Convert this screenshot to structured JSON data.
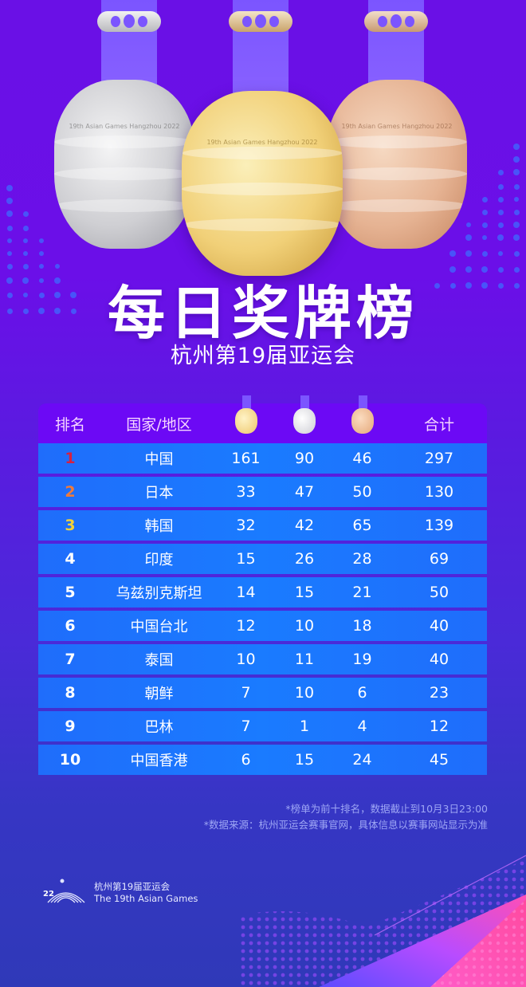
{
  "header": {
    "title": "每日奖牌榜",
    "subtitle": "杭州第19届亚运会"
  },
  "medals_image": {
    "items": [
      {
        "type": "silver",
        "icon": "silver-medal-icon",
        "inscription": "19th Asian Games Hangzhou 2022"
      },
      {
        "type": "gold",
        "icon": "gold-medal-icon",
        "inscription": "19th Asian Games Hangzhou 2022"
      },
      {
        "type": "bronze",
        "icon": "bronze-medal-icon",
        "inscription": "19th Asian Games Hangzhou 2022"
      }
    ]
  },
  "table": {
    "columns": {
      "rank": "排名",
      "country": "国家/地区",
      "gold_icon": "gold-medal-icon",
      "silver_icon": "silver-medal-icon",
      "bronze_icon": "bronze-medal-icon",
      "total": "合计"
    },
    "rank_colors": {
      "1": "#d8203f",
      "2": "#f07a3a",
      "3": "#f2d23a",
      "default": "#ffffff"
    },
    "rows": [
      {
        "rank": "1",
        "country": "中国",
        "gold": "161",
        "silver": "90",
        "bronze": "46",
        "total": "297"
      },
      {
        "rank": "2",
        "country": "日本",
        "gold": "33",
        "silver": "47",
        "bronze": "50",
        "total": "130"
      },
      {
        "rank": "3",
        "country": "韩国",
        "gold": "32",
        "silver": "42",
        "bronze": "65",
        "total": "139"
      },
      {
        "rank": "4",
        "country": "印度",
        "gold": "15",
        "silver": "26",
        "bronze": "28",
        "total": "69"
      },
      {
        "rank": "5",
        "country": "乌兹别克斯坦",
        "gold": "14",
        "silver": "15",
        "bronze": "21",
        "total": "50"
      },
      {
        "rank": "6",
        "country": "中国台北",
        "gold": "12",
        "silver": "10",
        "bronze": "18",
        "total": "40"
      },
      {
        "rank": "7",
        "country": "泰国",
        "gold": "10",
        "silver": "11",
        "bronze": "19",
        "total": "40"
      },
      {
        "rank": "8",
        "country": "朝鲜",
        "gold": "7",
        "silver": "10",
        "bronze": "6",
        "total": "23"
      },
      {
        "rank": "9",
        "country": "巴林",
        "gold": "7",
        "silver": "1",
        "bronze": "4",
        "total": "12"
      },
      {
        "rank": "10",
        "country": "中国香港",
        "gold": "6",
        "silver": "15",
        "bronze": "24",
        "total": "45"
      }
    ]
  },
  "notes": {
    "line1": "*榜单为前十排名，数据截止到10月3日23:00",
    "line2": "*数据来源：杭州亚运会赛事官网，具体信息以赛事网站显示为准"
  },
  "footer": {
    "logo_icon": "asian-games-logo-icon",
    "name_cn": "杭州第19届亚运会",
    "name_en": "The 19th Asian Games"
  },
  "colors": {
    "background_top": "#6a10e6",
    "background_bottom": "#2f39b8",
    "header_row": "#6c09f5",
    "data_row": "#1a7bff",
    "gold": "#f2cf6a",
    "silver": "#d9d9dc",
    "bronze": "#e9b18f",
    "ribbon": "#7b55ff"
  }
}
